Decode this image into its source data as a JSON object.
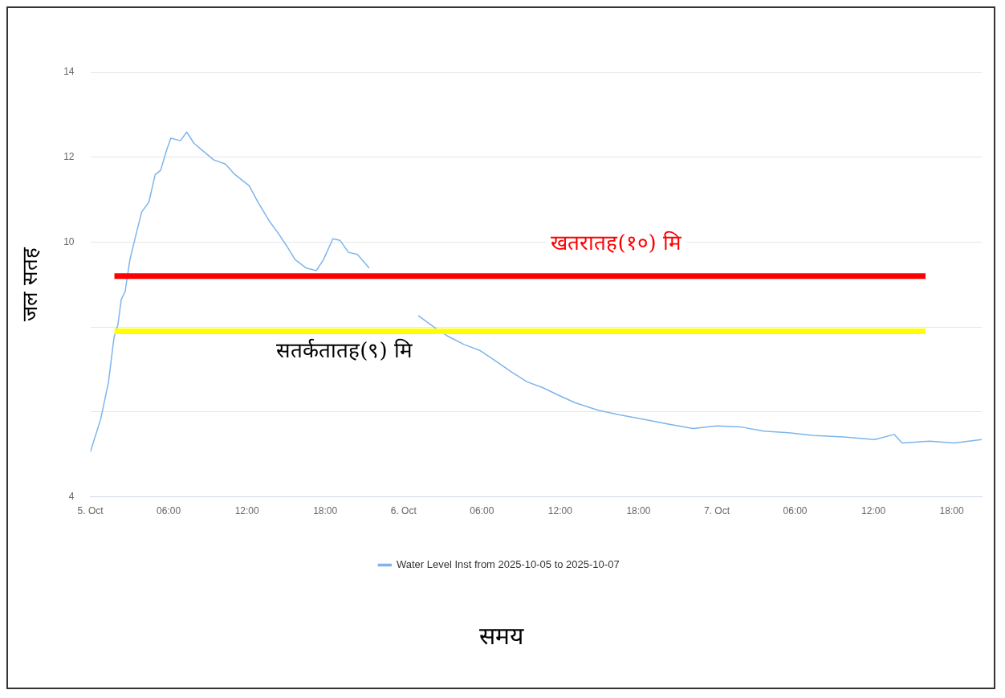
{
  "chart_data": {
    "type": "line",
    "xlabel": "समय",
    "ylabel": "जल सतह",
    "x": [
      "2025-10-05T00:00",
      "2025-10-05T00:47",
      "2025-10-05T01:23",
      "2025-10-05T01:49",
      "2025-10-05T02:07",
      "2025-10-05T02:22",
      "2025-10-05T02:40",
      "2025-10-05T03:02",
      "2025-10-05T03:31",
      "2025-10-05T03:56",
      "2025-10-05T04:29",
      "2025-10-05T04:58",
      "2025-10-05T05:23",
      "2025-10-05T05:49",
      "2025-10-05T06:10",
      "2025-10-05T06:54",
      "2025-10-05T07:23",
      "2025-10-05T07:56",
      "2025-10-05T08:40",
      "2025-10-05T09:26",
      "2025-10-05T10:21",
      "2025-10-05T11:05",
      "2025-10-05T12:10",
      "2025-10-05T12:53",
      "2025-10-05T13:41",
      "2025-10-05T14:25",
      "2025-10-05T15:04",
      "2025-10-05T15:41",
      "2025-10-05T16:32",
      "2025-10-05T17:19",
      "2025-10-05T17:52",
      "2025-10-05T18:35",
      "2025-10-05T19:08",
      "2025-10-05T19:47",
      "2025-10-05T20:28",
      "2025-10-05T21:22",
      "2025-10-05T23:00",
      "2025-10-06T01:07",
      "2025-10-06T02:31",
      "2025-10-06T03:25",
      "2025-10-06T04:38",
      "2025-10-06T05:50",
      "2025-10-06T07:03",
      "2025-10-06T08:16",
      "2025-10-06T09:28",
      "2025-10-06T10:41",
      "2025-10-06T11:54",
      "2025-10-06T13:07",
      "2025-10-06T14:55",
      "2025-10-06T16:44",
      "2025-10-06T18:33",
      "2025-10-06T20:22",
      "2025-10-06T22:11",
      "2025-10-07T00:00",
      "2025-10-07T01:48",
      "2025-10-07T03:36",
      "2025-10-07T05:30",
      "2025-10-07T07:18",
      "2025-10-07T09:42",
      "2025-10-07T12:06",
      "2025-10-07T13:36",
      "2025-10-07T14:12",
      "2025-10-07T16:18",
      "2025-10-07T18:12",
      "2025-10-07T20:18"
    ],
    "series": [
      {
        "name": "Water Level Inst from 2025-10-05 to 2025-10-07",
        "color": "#7cb5ec",
        "values": [
          5.06,
          5.82,
          6.69,
          7.76,
          8.06,
          8.65,
          8.84,
          9.59,
          10.2,
          10.71,
          10.94,
          11.59,
          11.69,
          12.14,
          12.45,
          12.39,
          12.59,
          12.33,
          12.14,
          11.94,
          11.84,
          11.59,
          11.33,
          10.92,
          10.51,
          10.2,
          9.9,
          9.59,
          9.39,
          9.33,
          9.59,
          10.08,
          10.04,
          9.76,
          9.71,
          9.39,
          null,
          8.27,
          7.96,
          7.78,
          7.59,
          7.45,
          7.2,
          6.94,
          6.71,
          6.57,
          6.39,
          6.22,
          6.04,
          5.92,
          5.82,
          5.71,
          5.61,
          5.67,
          5.65,
          5.55,
          5.51,
          5.45,
          5.41,
          5.35,
          5.47,
          5.27,
          5.31,
          5.27,
          5.35
        ]
      }
    ],
    "xlim": [
      "2025-10-05T00:00",
      "2025-10-07T20:18"
    ],
    "xticks": [
      {
        "value": "2025-10-05T00:00",
        "label": "5. Oct"
      },
      {
        "value": "2025-10-05T06:00",
        "label": "06:00"
      },
      {
        "value": "2025-10-05T12:00",
        "label": "12:00"
      },
      {
        "value": "2025-10-05T18:00",
        "label": "18:00"
      },
      {
        "value": "2025-10-06T00:00",
        "label": "6. Oct"
      },
      {
        "value": "2025-10-06T06:00",
        "label": "06:00"
      },
      {
        "value": "2025-10-06T12:00",
        "label": "12:00"
      },
      {
        "value": "2025-10-06T18:00",
        "label": "18:00"
      },
      {
        "value": "2025-10-07T00:00",
        "label": "7. Oct"
      },
      {
        "value": "2025-10-07T06:00",
        "label": "06:00"
      },
      {
        "value": "2025-10-07T12:00",
        "label": "12:00"
      },
      {
        "value": "2025-10-07T18:00",
        "label": "18:00"
      }
    ],
    "ylim": [
      4,
      14
    ],
    "yticks": [
      4,
      {
        "value": 6,
        "label": null
      },
      {
        "value": 8,
        "label": null
      },
      10,
      12,
      14
    ],
    "grid": "y",
    "legend": "bottom",
    "ref_lines": [
      {
        "axis": "y",
        "value": 9.2,
        "color": "#ff0000"
      },
      {
        "axis": "y",
        "value": 7.9,
        "color": "#ffff00"
      }
    ],
    "annotations": [
      "खतरातह(१०) मि",
      "सतर्कतातह(९) मि"
    ]
  }
}
